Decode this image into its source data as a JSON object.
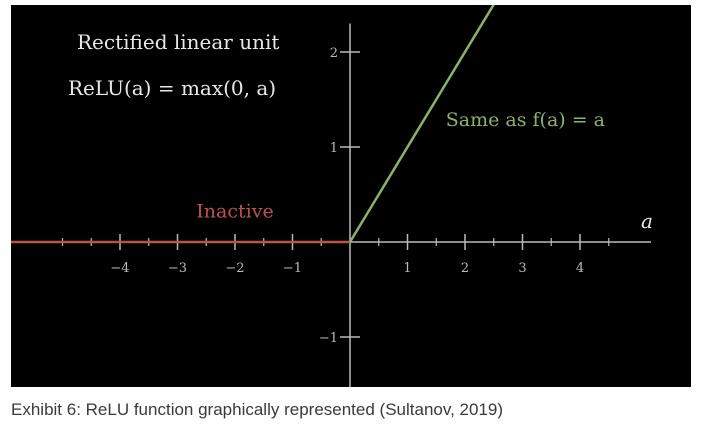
{
  "caption": "Exhibit 6: ReLU function graphically represented (Sultanov, 2019)",
  "chart_data": {
    "type": "line",
    "title": "Rectified linear unit",
    "subtitle": "ReLU(a) = max(0, a)",
    "xlabel": "a",
    "ylabel": "",
    "xlim": [
      -5,
      5
    ],
    "ylim": [
      -1.7,
      2.3
    ],
    "x_ticks": [
      -4,
      -3,
      -2,
      -1,
      1,
      2,
      3,
      4
    ],
    "x_tick_labels": [
      "−4",
      "−3",
      "−2",
      "−1",
      "1",
      "2",
      "3",
      "4"
    ],
    "x_minor_ticks": [
      -5,
      -4.5,
      -3.5,
      -2.5,
      -1.5,
      -0.5,
      0.5,
      1.5,
      2.5,
      3.5,
      4.5
    ],
    "y_ticks": [
      -1,
      1,
      2
    ],
    "y_tick_labels": [
      "−1",
      "1",
      "2"
    ],
    "grid": false,
    "background": "#000000",
    "axis_color": "#bbbbbb",
    "series": [
      {
        "name": "Inactive",
        "color": "#c0524a",
        "x": [
          -6,
          0
        ],
        "y": [
          0,
          0
        ]
      },
      {
        "name": "Same as f(a) = a",
        "color": "#8ab36a",
        "x": [
          0,
          2.55
        ],
        "y": [
          0,
          2.55
        ]
      }
    ],
    "annotations": [
      {
        "text": "Inactive",
        "x": -2.0,
        "y": 0.26,
        "color": "#c0524a"
      },
      {
        "text": "Same as f(a) = a",
        "x": 3.05,
        "y": 1.22,
        "color": "#8ab36a"
      }
    ]
  }
}
